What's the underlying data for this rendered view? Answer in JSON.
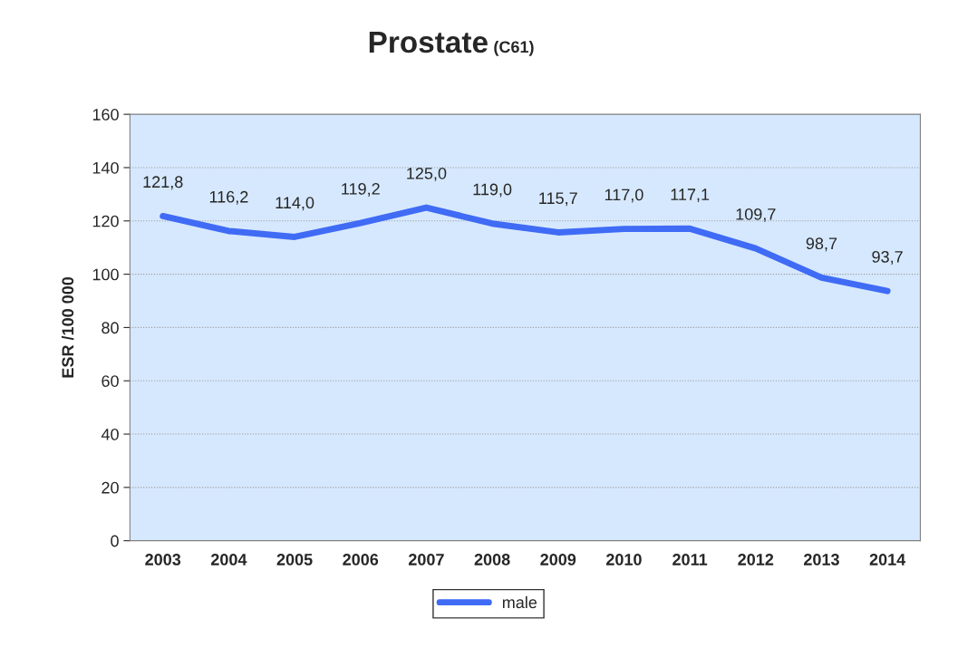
{
  "chart_data": {
    "type": "line",
    "title": "Prostate",
    "subtitle": "(C61)",
    "ylabel": "ESR /100 000",
    "categories": [
      "2003",
      "2004",
      "2005",
      "2006",
      "2007",
      "2008",
      "2009",
      "2010",
      "2011",
      "2012",
      "2013",
      "2014"
    ],
    "series": [
      {
        "name": "male",
        "color": "#3f6bf5",
        "values": [
          121.8,
          116.2,
          114.0,
          119.2,
          125.0,
          119.0,
          115.7,
          117.0,
          117.1,
          109.7,
          98.7,
          93.7
        ],
        "value_labels": [
          "121,8",
          "116,2",
          "114,0",
          "119,2",
          "125,0",
          "119,0",
          "115,7",
          "117,0",
          "117,1",
          "109,7",
          "98,7",
          "93,7"
        ]
      }
    ],
    "ylim": [
      0,
      160
    ],
    "yticks": [
      0,
      20,
      40,
      60,
      80,
      100,
      120,
      140,
      160
    ],
    "grid": "y",
    "legend": "bottom",
    "marker": "none",
    "line_style": "solid"
  }
}
